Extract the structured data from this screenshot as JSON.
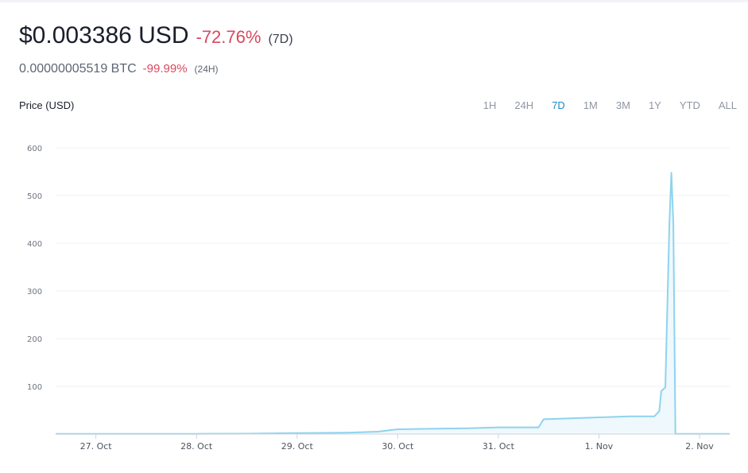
{
  "header": {
    "price": "$0.003386 USD",
    "change_7d": "-72.76%",
    "period_7d": "(7D)",
    "btc_price": "0.00000005519 BTC",
    "change_24h": "-99.99%",
    "period_24h": "(24H)"
  },
  "colors": {
    "negative": "#d9485f",
    "line": "#8fd3ee",
    "fill": "#eef8fd",
    "active_range": "#1f88c8",
    "grid": "#eef0f3"
  },
  "chart_label": "Price (USD)",
  "ranges": [
    {
      "label": "1H",
      "active": false
    },
    {
      "label": "24H",
      "active": false
    },
    {
      "label": "7D",
      "active": true
    },
    {
      "label": "1M",
      "active": false
    },
    {
      "label": "3M",
      "active": false
    },
    {
      "label": "1Y",
      "active": false
    },
    {
      "label": "YTD",
      "active": false
    },
    {
      "label": "ALL",
      "active": false
    }
  ],
  "chart_data": {
    "type": "area",
    "title": "",
    "xlabel": "",
    "ylabel": "Price (USD)",
    "ylim": [
      0,
      600
    ],
    "yticks": [
      100,
      200,
      300,
      400,
      500,
      600
    ],
    "x_tick_labels": [
      "27. Oct",
      "28. Oct",
      "29. Oct",
      "30. Oct",
      "31. Oct",
      "1. Nov",
      "2. Nov"
    ],
    "xlim_days": [
      26.6,
      33.3
    ],
    "grid": true,
    "legend": "none",
    "series": [
      {
        "points": [
          [
            26.6,
            0.5
          ],
          [
            27.0,
            0.5
          ],
          [
            28.0,
            0.5
          ],
          [
            28.5,
            0.8
          ],
          [
            29.0,
            2
          ],
          [
            29.5,
            3
          ],
          [
            29.8,
            5
          ],
          [
            30.0,
            10
          ],
          [
            30.3,
            11
          ],
          [
            30.7,
            12
          ],
          [
            31.0,
            14
          ],
          [
            31.4,
            14
          ],
          [
            31.45,
            31
          ],
          [
            31.6,
            32
          ],
          [
            32.0,
            35
          ],
          [
            32.3,
            37
          ],
          [
            32.55,
            37
          ],
          [
            32.6,
            48
          ],
          [
            32.62,
            90
          ],
          [
            32.66,
            98
          ],
          [
            32.7,
            440
          ],
          [
            32.72,
            548
          ],
          [
            32.74,
            440
          ],
          [
            32.76,
            0.5
          ],
          [
            33.3,
            0.5
          ]
        ]
      }
    ]
  }
}
